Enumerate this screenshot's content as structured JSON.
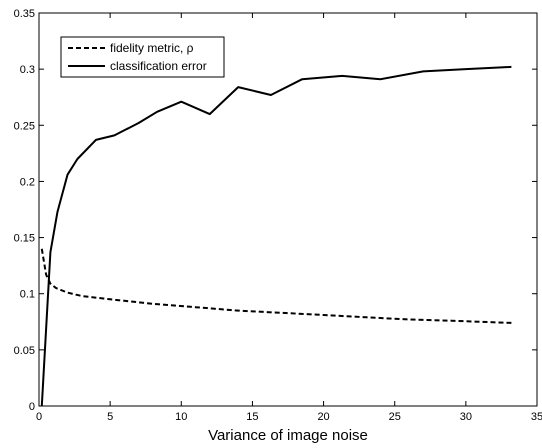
{
  "chart_data": {
    "type": "line",
    "title": "",
    "xlabel": "Variance of image noise",
    "ylabel": "",
    "xlim": [
      0,
      35
    ],
    "ylim": [
      0,
      0.35
    ],
    "xticks": [
      0,
      5,
      10,
      15,
      20,
      25,
      30,
      35
    ],
    "yticks": [
      0,
      0.05,
      0.1,
      0.15,
      0.2,
      0.25,
      0.3,
      0.35
    ],
    "xtick_labels": [
      "0",
      "5",
      "10",
      "15",
      "20",
      "25",
      "30",
      "35"
    ],
    "ytick_labels": [
      "0",
      "0.05",
      "0.1",
      "0.15",
      "0.2",
      "0.25",
      "0.3",
      "0.35"
    ],
    "grid": false,
    "legend_position": "top-left",
    "series": [
      {
        "name": "fidelity metric, ρ",
        "style": "dashed",
        "color": "#000000",
        "x": [
          0.2,
          0.5,
          0.8,
          1.2,
          2.0,
          3.0,
          5.0,
          8.0,
          11.0,
          14.0,
          17.0,
          20.0,
          23.0,
          26.0,
          29.0,
          31.0,
          33.2
        ],
        "y": [
          0.14,
          0.117,
          0.109,
          0.105,
          0.101,
          0.098,
          0.095,
          0.091,
          0.088,
          0.085,
          0.083,
          0.081,
          0.079,
          0.077,
          0.076,
          0.075,
          0.074
        ]
      },
      {
        "name": "classification error",
        "style": "solid",
        "color": "#000000",
        "x": [
          0.2,
          0.8,
          1.3,
          2.0,
          2.7,
          4.0,
          5.3,
          7.0,
          8.3,
          10.0,
          12.0,
          14.0,
          16.3,
          18.5,
          21.3,
          24.0,
          27.0,
          30.0,
          33.2
        ],
        "y": [
          0.0,
          0.137,
          0.173,
          0.206,
          0.22,
          0.237,
          0.241,
          0.252,
          0.262,
          0.271,
          0.26,
          0.284,
          0.277,
          0.291,
          0.294,
          0.291,
          0.298,
          0.3,
          0.302
        ]
      }
    ]
  }
}
